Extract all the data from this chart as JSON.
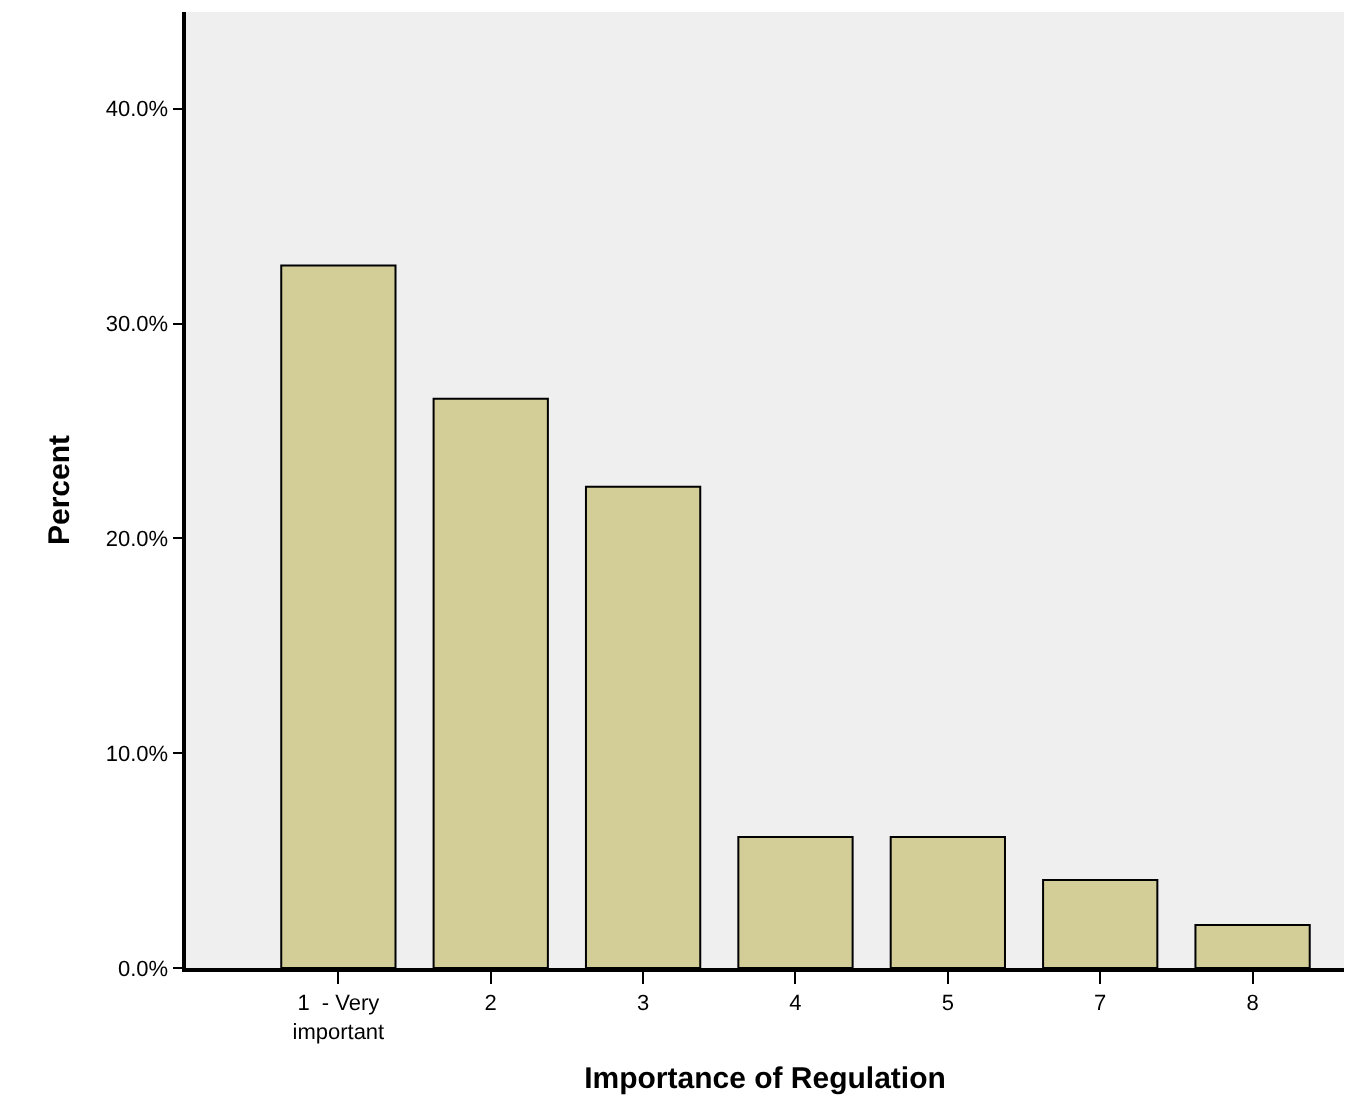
{
  "chart_data": {
    "type": "bar",
    "xlabel": "Importance of Regulation",
    "ylabel": "Percent",
    "categories": [
      "1  - Very\nimportant",
      "2",
      "3",
      "4",
      "5",
      "7",
      "8"
    ],
    "values": [
      32.7,
      26.5,
      22.4,
      6.1,
      6.1,
      4.1,
      2.0
    ],
    "color": "#d3ce98",
    "ylim": [
      0,
      44.5
    ],
    "yticks": [
      {
        "value": 0,
        "label": "0.0%"
      },
      {
        "value": 10,
        "label": "10.0%"
      },
      {
        "value": 20,
        "label": "20.0%"
      },
      {
        "value": 30,
        "label": "30.0%"
      },
      {
        "value": 40,
        "label": "40.0%"
      }
    ],
    "grid": false
  }
}
